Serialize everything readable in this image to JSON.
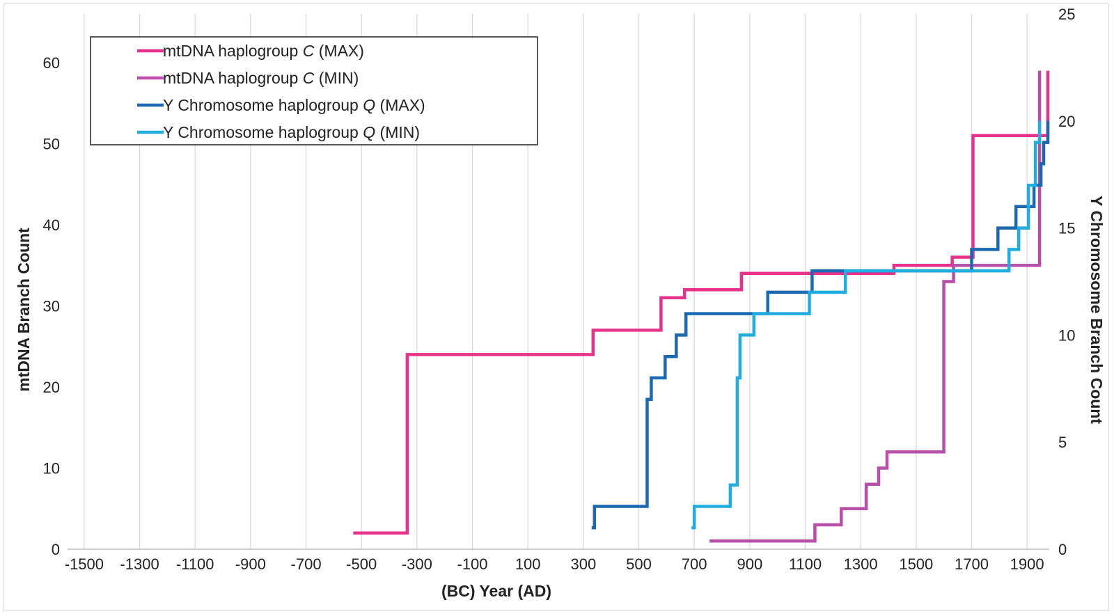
{
  "chart_data": {
    "type": "line",
    "xlabel": "(BC) Year (AD)",
    "ylabel": "mtDNA Branch Count",
    "y2label": "Y Chromosome Branch Count",
    "xlim": [
      -1560,
      1980
    ],
    "ylim": [
      0,
      66
    ],
    "y2lim": [
      0,
      25
    ],
    "x_ticks": [
      -1500,
      -1300,
      -1100,
      -900,
      -700,
      -500,
      -300,
      -100,
      100,
      300,
      500,
      700,
      900,
      1100,
      1300,
      1500,
      1700,
      1900
    ],
    "x_tick_labels": [
      "-1500",
      "-1300",
      "-1100",
      "-900",
      "-700",
      "-500",
      "-300",
      "-100",
      "100",
      "300",
      "500",
      "700",
      "900",
      "1100",
      "1300",
      "1500",
      "1700",
      "1900"
    ],
    "y_ticks": [
      0,
      10,
      20,
      30,
      40,
      50,
      60
    ],
    "y_tick_labels": [
      "0",
      "10",
      "20",
      "30",
      "40",
      "50",
      "60"
    ],
    "y2_ticks": [
      0,
      5,
      10,
      15,
      20,
      25
    ],
    "y2_tick_labels": [
      "0",
      "5",
      "10",
      "15",
      "20",
      "25"
    ],
    "grid": "vertical",
    "legend_position": "top-left",
    "series": [
      {
        "name": "mtDNA haplogroup C (MAX)",
        "name_prefix": "mtDNA haplogroup ",
        "name_italic": "C",
        "name_suffix": " (MAX)",
        "axis": "left",
        "color": "#e8318a",
        "points": [
          [
            -530,
            2
          ],
          [
            -335,
            2
          ],
          [
            -335,
            24
          ],
          [
            335,
            24
          ],
          [
            335,
            27
          ],
          [
            580,
            27
          ],
          [
            580,
            31
          ],
          [
            665,
            31
          ],
          [
            665,
            32
          ],
          [
            870,
            32
          ],
          [
            870,
            34
          ],
          [
            1420,
            34
          ],
          [
            1420,
            35
          ],
          [
            1630,
            35
          ],
          [
            1630,
            36
          ],
          [
            1705,
            36
          ],
          [
            1705,
            51
          ],
          [
            1975,
            51
          ],
          [
            1975,
            59
          ]
        ]
      },
      {
        "name": "mtDNA haplogroup C (MIN)",
        "name_prefix": "mtDNA haplogroup ",
        "name_italic": "C",
        "name_suffix": " (MIN)",
        "axis": "left",
        "color": "#b84fa8",
        "points": [
          [
            755,
            1
          ],
          [
            1135,
            1
          ],
          [
            1135,
            3
          ],
          [
            1230,
            3
          ],
          [
            1230,
            5
          ],
          [
            1320,
            5
          ],
          [
            1320,
            8
          ],
          [
            1365,
            8
          ],
          [
            1365,
            10
          ],
          [
            1395,
            10
          ],
          [
            1395,
            12
          ],
          [
            1600,
            12
          ],
          [
            1600,
            33
          ],
          [
            1635,
            33
          ],
          [
            1635,
            35
          ],
          [
            1945,
            35
          ],
          [
            1945,
            59
          ]
        ]
      },
      {
        "name": "Y Chromosome haplogroup Q (MAX)",
        "name_prefix": "Y Chromosome haplogroup ",
        "name_italic": "Q",
        "name_suffix": " (MAX)",
        "axis": "right",
        "color": "#1b68b3",
        "points": [
          [
            330,
            1
          ],
          [
            340,
            1
          ],
          [
            340,
            2
          ],
          [
            530,
            2
          ],
          [
            530,
            7
          ],
          [
            545,
            7
          ],
          [
            545,
            8
          ],
          [
            595,
            8
          ],
          [
            595,
            9
          ],
          [
            635,
            9
          ],
          [
            635,
            10
          ],
          [
            670,
            10
          ],
          [
            670,
            11
          ],
          [
            965,
            11
          ],
          [
            965,
            12
          ],
          [
            1125,
            12
          ],
          [
            1125,
            13
          ],
          [
            1700,
            13
          ],
          [
            1700,
            14
          ],
          [
            1795,
            14
          ],
          [
            1795,
            15
          ],
          [
            1860,
            15
          ],
          [
            1860,
            16
          ],
          [
            1925,
            16
          ],
          [
            1925,
            17
          ],
          [
            1950,
            17
          ],
          [
            1950,
            18
          ],
          [
            1960,
            18
          ],
          [
            1960,
            19
          ],
          [
            1975,
            19
          ],
          [
            1975,
            20
          ]
        ]
      },
      {
        "name": "Y Chromosome haplogroup Q (MIN)",
        "name_prefix": "Y Chromosome haplogroup ",
        "name_italic": "Q",
        "name_suffix": " (MIN)",
        "axis": "right",
        "color": "#22ade0",
        "points": [
          [
            690,
            1
          ],
          [
            700,
            1
          ],
          [
            700,
            2
          ],
          [
            830,
            2
          ],
          [
            830,
            3
          ],
          [
            855,
            3
          ],
          [
            855,
            8
          ],
          [
            865,
            8
          ],
          [
            865,
            10
          ],
          [
            915,
            10
          ],
          [
            915,
            11
          ],
          [
            1115,
            11
          ],
          [
            1115,
            12
          ],
          [
            1245,
            12
          ],
          [
            1245,
            13
          ],
          [
            1835,
            13
          ],
          [
            1835,
            14
          ],
          [
            1870,
            14
          ],
          [
            1870,
            15
          ],
          [
            1905,
            15
          ],
          [
            1905,
            17
          ],
          [
            1930,
            17
          ],
          [
            1930,
            19
          ],
          [
            1945,
            19
          ],
          [
            1945,
            20
          ]
        ]
      }
    ]
  }
}
